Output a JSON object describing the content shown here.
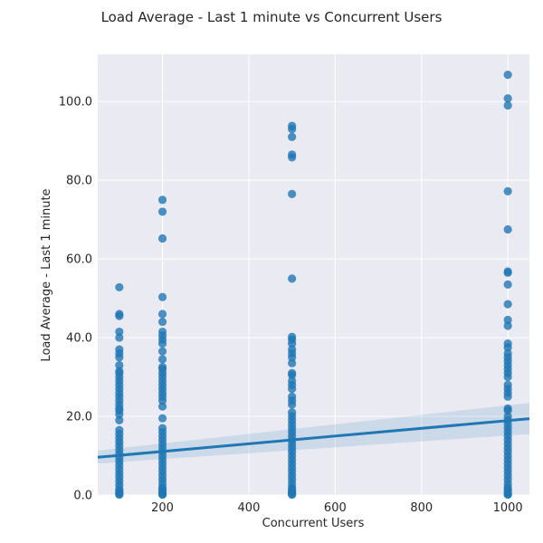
{
  "chart_data": {
    "type": "scatter",
    "title": "Load Average - Last 1 minute vs Concurrent Users",
    "xlabel": "Concurrent Users",
    "ylabel": "Load Average - Last 1 minute",
    "xlim": [
      50,
      1050
    ],
    "ylim": [
      0,
      112
    ],
    "x_ticks": [
      200,
      400,
      600,
      800,
      1000
    ],
    "x_tick_labels": [
      "200",
      "400",
      "600",
      "800",
      "1000"
    ],
    "y_ticks": [
      0,
      20,
      40,
      60,
      80,
      100
    ],
    "y_tick_labels": [
      "0.0",
      "20.0",
      "40.0",
      "60.0",
      "80.0",
      "100.0"
    ],
    "grid": true,
    "colors": {
      "points": "#1f77b4",
      "background": "#eaeaf2",
      "grid": "#ffffff"
    },
    "regression": {
      "x": [
        50,
        1050
      ],
      "y": [
        9.6,
        19.4
      ],
      "ci_lower": [
        8.0,
        15.5
      ],
      "ci_upper": [
        11.3,
        23.4
      ]
    },
    "series": [
      {
        "x": 100,
        "values": [
          52.8,
          46.0,
          45.5,
          41.5,
          40.0,
          37.0,
          36.0,
          35.0,
          33.0,
          31.5,
          31.0,
          30.0,
          29.0,
          28.0,
          27.0,
          26.0,
          25.0,
          24.0,
          23.0,
          22.0,
          21.5,
          20.5,
          19.0,
          16.5,
          15.5,
          14.5,
          13.5,
          12.5,
          11.5,
          10.5,
          9.5,
          8.5,
          7.5,
          6.5,
          5.5,
          4.5,
          3.5,
          2.5,
          1.5,
          1.0,
          0.6,
          0.3,
          0.1
        ]
      },
      {
        "x": 200,
        "values": [
          75.0,
          72.0,
          65.2,
          50.3,
          46.0,
          44.0,
          41.5,
          40.5,
          39.5,
          38.5,
          36.5,
          34.5,
          32.5,
          32.0,
          31.0,
          30.0,
          29.0,
          28.0,
          27.0,
          26.0,
          25.0,
          24.0,
          22.5,
          19.5,
          17.0,
          16.0,
          15.0,
          14.0,
          13.0,
          12.0,
          11.0,
          10.0,
          9.0,
          8.0,
          7.0,
          6.0,
          5.0,
          4.0,
          3.0,
          2.0,
          1.5,
          1.0,
          0.5,
          0.2,
          0.1
        ]
      },
      {
        "x": 500,
        "values": [
          93.8,
          93.0,
          91.0,
          86.5,
          85.8,
          76.5,
          55.0,
          40.2,
          39.5,
          38.5,
          37.0,
          36.0,
          35.0,
          33.5,
          31.0,
          30.5,
          29.0,
          28.0,
          27.0,
          25.0,
          24.0,
          23.0,
          21.0,
          20.0,
          19.0,
          18.0,
          17.0,
          16.0,
          15.0,
          14.0,
          13.0,
          12.0,
          11.0,
          10.0,
          9.0,
          8.0,
          7.0,
          6.0,
          5.0,
          4.0,
          3.0,
          2.0,
          1.5,
          1.0,
          0.6,
          0.3,
          0.1
        ]
      },
      {
        "x": 1000,
        "values": [
          106.8,
          100.8,
          99.0,
          77.2,
          67.5,
          56.8,
          56.5,
          53.5,
          48.5,
          44.5,
          43.0,
          38.5,
          37.5,
          36.0,
          35.0,
          34.0,
          33.0,
          32.0,
          31.0,
          30.0,
          28.0,
          27.0,
          26.0,
          25.0,
          22.0,
          21.5,
          20.0,
          19.0,
          18.0,
          17.0,
          16.0,
          15.0,
          14.0,
          13.0,
          12.0,
          11.0,
          10.0,
          9.0,
          8.0,
          7.0,
          6.0,
          5.0,
          4.0,
          3.0,
          2.0,
          1.5,
          1.0,
          0.5,
          0.2,
          0.1
        ]
      }
    ]
  }
}
